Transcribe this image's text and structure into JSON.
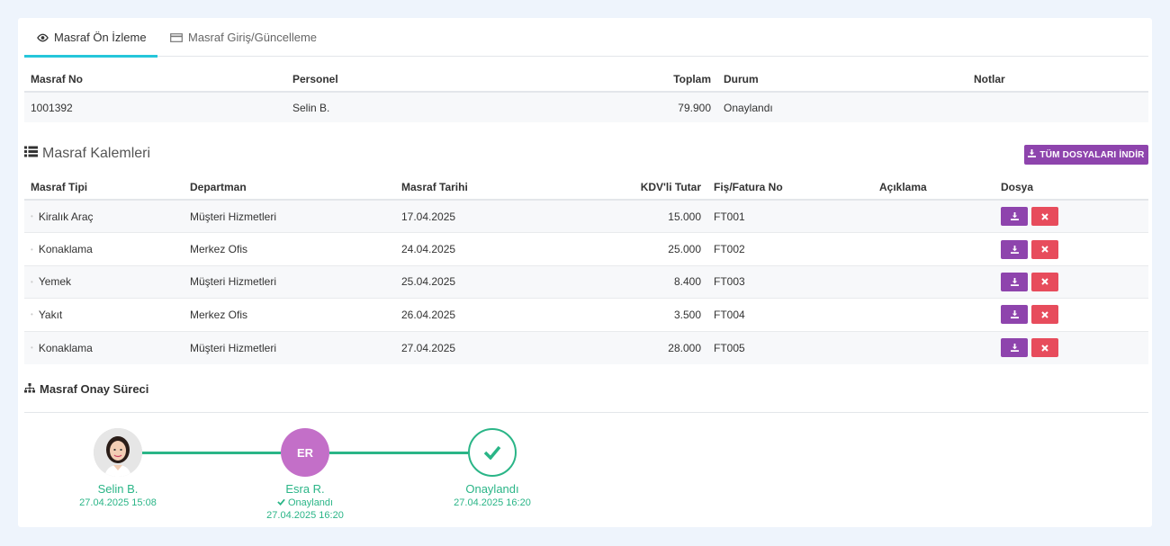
{
  "tabs": [
    {
      "label": "Masraf Ön İzleme",
      "icon": "eye-icon",
      "active": true
    },
    {
      "label": "Masraf Giriş/Güncelleme",
      "icon": "card-icon",
      "active": false
    }
  ],
  "summary": {
    "headers": {
      "no": "Masraf No",
      "personel": "Personel",
      "toplam": "Toplam",
      "durum": "Durum",
      "notlar": "Notlar"
    },
    "row": {
      "no": "1001392",
      "personel": "Selin B.",
      "toplam": "79.900",
      "durum": "Onaylandı",
      "notlar": ""
    }
  },
  "items_section": {
    "title": "Masraf Kalemleri",
    "download_all_label": "TÜM DOSYALARI İNDİR",
    "headers": {
      "tip": "Masraf Tipi",
      "departman": "Departman",
      "tarih": "Masraf Tarihi",
      "tutar": "KDV'li Tutar",
      "fis": "Fiş/Fatura No",
      "aciklama": "Açıklama",
      "dosya": "Dosya"
    },
    "rows": [
      {
        "tip": "Kiralık Araç",
        "departman": "Müşteri Hizmetleri",
        "tarih": "17.04.2025",
        "tutar": "15.000",
        "fis": "FT001",
        "aciklama": ""
      },
      {
        "tip": "Konaklama",
        "departman": "Merkez Ofis",
        "tarih": "24.04.2025",
        "tutar": "25.000",
        "fis": "FT002",
        "aciklama": ""
      },
      {
        "tip": "Yemek",
        "departman": "Müşteri Hizmetleri",
        "tarih": "25.04.2025",
        "tutar": "8.400",
        "fis": "FT003",
        "aciklama": ""
      },
      {
        "tip": "Yakıt",
        "departman": "Merkez Ofis",
        "tarih": "26.04.2025",
        "tutar": "3.500",
        "fis": "FT004",
        "aciklama": ""
      },
      {
        "tip": "Konaklama",
        "departman": "Müşteri Hizmetleri",
        "tarih": "27.04.2025",
        "tutar": "28.000",
        "fis": "FT005",
        "aciklama": ""
      }
    ]
  },
  "process": {
    "title": "Masraf Onay Süreci",
    "steps": [
      {
        "name": "Selin B.",
        "status": "",
        "date": "27.04.2025 15:08"
      },
      {
        "name": "Esra R.",
        "initials": "ER",
        "status": "Onaylandı",
        "date": "27.04.2025 16:20"
      },
      {
        "name": "Onaylandı",
        "status": "",
        "date": "27.04.2025 16:20"
      }
    ]
  },
  "colors": {
    "accent": "#26c6da",
    "purple": "#8e44ad",
    "danger": "#e74c5c",
    "success": "#2ab587",
    "avatar_er": "#c36fc8"
  }
}
